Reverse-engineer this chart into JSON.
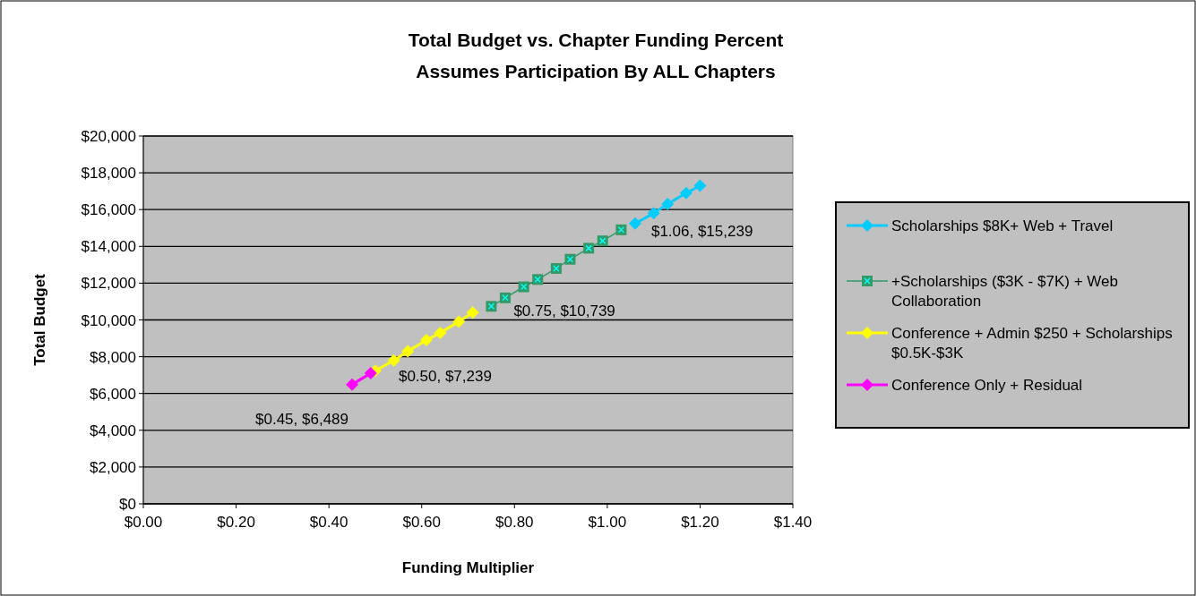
{
  "chart_data": {
    "type": "line",
    "title": "Total Budget vs. Chapter Funding Percent",
    "subtitle": "Assumes Participation By ALL Chapters",
    "xlabel": "Funding Multiplier",
    "ylabel": "Total Budget",
    "xlim": [
      0,
      1.4
    ],
    "xticks": [
      {
        "value": 0,
        "label": "$0.00"
      },
      {
        "value": 0.2,
        "label": "$0.20"
      },
      {
        "value": 0.4,
        "label": "$0.40"
      },
      {
        "value": 0.6,
        "label": "$0.60"
      },
      {
        "value": 0.8,
        "label": "$0.80"
      },
      {
        "value": 1,
        "label": "$1.00"
      },
      {
        "value": 1.2,
        "label": "$1.20"
      },
      {
        "value": 1.4,
        "label": "$1.40"
      }
    ],
    "ylim": [
      0,
      20000
    ],
    "yticks": [
      {
        "value": 0,
        "label": "$0"
      },
      {
        "value": 2000,
        "label": "$2,000"
      },
      {
        "value": 4000,
        "label": "$4,000"
      },
      {
        "value": 6000,
        "label": "$6,000"
      },
      {
        "value": 8000,
        "label": "$8,000"
      },
      {
        "value": 10000,
        "label": "$10,000"
      },
      {
        "value": 12000,
        "label": "$12,000"
      },
      {
        "value": 14000,
        "label": "$14,000"
      },
      {
        "value": 16000,
        "label": "$16,000"
      },
      {
        "value": 18000,
        "label": "$18,000"
      },
      {
        "value": 20000,
        "label": "$20,000"
      }
    ],
    "grid": "y",
    "legend": "right",
    "series": [
      {
        "name": "Scholarships $8K+ Web + Travel",
        "color": "#00ccff",
        "marker": "diamond",
        "x": [
          1.06,
          1.1,
          1.13,
          1.17,
          1.2
        ],
        "values": [
          15239,
          15800,
          16300,
          16900,
          17300
        ]
      },
      {
        "name": "+Scholarships ($3K - $7K) + Web Collaboration",
        "color": "#339966",
        "marker": "square",
        "x": [
          0.75,
          0.78,
          0.82,
          0.85,
          0.89,
          0.92,
          0.96,
          0.99,
          1.03
        ],
        "values": [
          10739,
          11200,
          11800,
          12200,
          12800,
          13300,
          13900,
          14300,
          14900
        ]
      },
      {
        "name": "Conference + Admin $250 + Scholarships $0.5K-$3K",
        "color": "#ffff00",
        "marker": "diamond",
        "x": [
          0.5,
          0.54,
          0.57,
          0.61,
          0.64,
          0.68,
          0.71
        ],
        "values": [
          7239,
          7800,
          8300,
          8900,
          9300,
          9900,
          10400
        ]
      },
      {
        "name": "Conference Only + Residual",
        "color": "#ff00ff",
        "marker": "diamond",
        "x": [
          0.45,
          0.49
        ],
        "values": [
          6489,
          7100
        ]
      }
    ],
    "annotations": [
      {
        "text": "$0.45, $6,489",
        "x": 0.45,
        "y": 6489
      },
      {
        "text": "$0.50, $7,239",
        "x": 0.5,
        "y": 7239
      },
      {
        "text": "$0.75, $10,739",
        "x": 0.75,
        "y": 10739
      },
      {
        "text": "$1.06, $15,239",
        "x": 1.06,
        "y": 15239
      }
    ]
  }
}
